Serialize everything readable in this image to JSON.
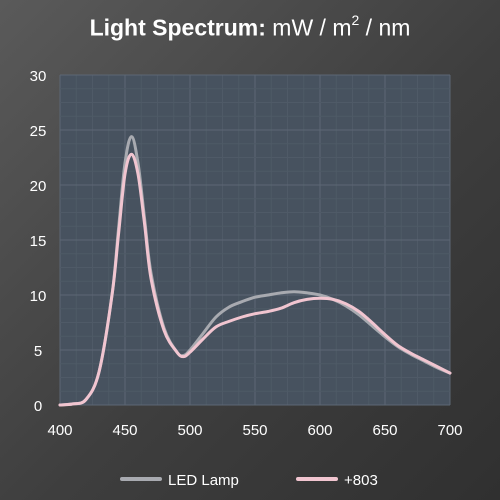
{
  "title": {
    "bold": "Light Spectrum:",
    "rest": " mW / m",
    "sup": "2",
    "tail": " / nm"
  },
  "chart_data": {
    "type": "line",
    "xlim": [
      400,
      700
    ],
    "ylim": [
      0,
      30
    ],
    "xticks": [
      400,
      450,
      500,
      550,
      600,
      650,
      700
    ],
    "yticks": [
      0,
      5,
      10,
      15,
      20,
      25,
      30
    ],
    "grid": true,
    "legend_position": "bottom",
    "x": [
      400,
      410,
      420,
      430,
      440,
      445,
      450,
      455,
      460,
      465,
      470,
      480,
      490,
      495,
      500,
      510,
      520,
      530,
      540,
      550,
      560,
      570,
      580,
      590,
      600,
      610,
      620,
      630,
      640,
      650,
      660,
      670,
      680,
      690,
      700
    ],
    "series": [
      {
        "name": "LED Lamp",
        "color": "#a8aab0",
        "values": [
          0,
          0.1,
          0.5,
          3,
          10,
          16,
          22,
          24.4,
          22,
          17,
          12,
          7,
          4.8,
          4.5,
          5,
          6.5,
          8,
          8.9,
          9.4,
          9.8,
          10,
          10.2,
          10.3,
          10.2,
          10,
          9.6,
          9,
          8.2,
          7.2,
          6.2,
          5.3,
          4.6,
          4,
          3.4,
          2.9
        ]
      },
      {
        "name": "+803",
        "color": "#f1c5d0",
        "values": [
          0,
          0.1,
          0.5,
          3,
          10,
          15.5,
          21,
          22.8,
          21,
          16.5,
          11.5,
          6.8,
          4.8,
          4.4,
          4.8,
          6,
          7.1,
          7.6,
          8,
          8.3,
          8.5,
          8.8,
          9.3,
          9.6,
          9.7,
          9.6,
          9.2,
          8.5,
          7.5,
          6.4,
          5.4,
          4.7,
          4.1,
          3.5,
          2.9
        ]
      }
    ]
  }
}
